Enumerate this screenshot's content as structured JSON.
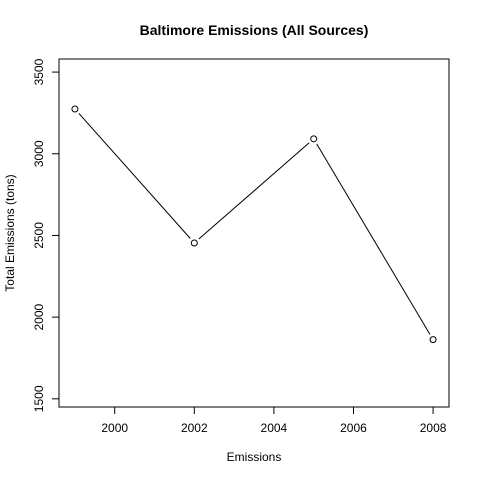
{
  "chart_data": {
    "type": "line",
    "title": "Baltimore Emissions (All Sources)",
    "xlabel": "Emissions",
    "ylabel": "Total Emissions (tons)",
    "x": [
      1999,
      2002,
      2005,
      2008
    ],
    "series": [
      {
        "values": [
          3274.18,
          2453.92,
          3091.35,
          1862.28
        ]
      }
    ],
    "xlim": [
      1998.6,
      2008.4
    ],
    "ylim": [
      1450,
      3580
    ],
    "x_ticks": [
      2000,
      2002,
      2004,
      2006,
      2008
    ],
    "y_ticks": [
      1500,
      2000,
      2500,
      3000,
      3500
    ],
    "marker": "open-circle",
    "grid": false,
    "colors": {
      "line": "#000000",
      "axis": "#000000",
      "background": "#ffffff"
    }
  }
}
